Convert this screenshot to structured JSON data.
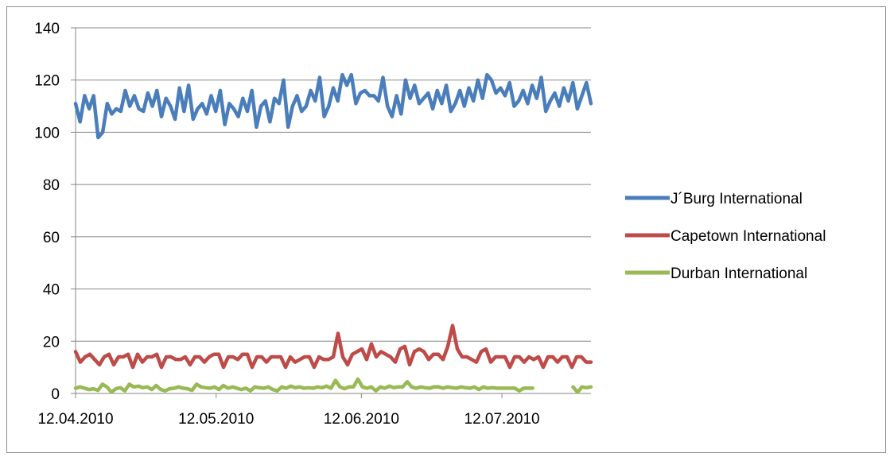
{
  "chart_data": {
    "type": "line",
    "x_start": "12.04.2010",
    "x_end": "31.07.2010",
    "x_tick_labels": [
      "12.04.2010",
      "12.05.2010",
      "12.06.2010",
      "12.07.2010"
    ],
    "x_tick_dates": [
      "2010-04-12",
      "2010-05-12",
      "2010-06-12",
      "2010-07-12"
    ],
    "ylim": [
      0,
      140
    ],
    "y_ticks": [
      0,
      20,
      40,
      60,
      80,
      100,
      120,
      140
    ],
    "grid": true,
    "legend_position": "right",
    "series": [
      {
        "name": "J´Burg International",
        "color": "#4a7ebb",
        "values": [
          111,
          104,
          114,
          109,
          114,
          98,
          100,
          111,
          107,
          109,
          108,
          116,
          110,
          114,
          109,
          108,
          115,
          110,
          116,
          106,
          113,
          110,
          105,
          117,
          108,
          118,
          105,
          109,
          111,
          107,
          114,
          108,
          116,
          103,
          111,
          109,
          106,
          113,
          108,
          116,
          102,
          110,
          112,
          104,
          113,
          111,
          120,
          102,
          110,
          114,
          108,
          110,
          116,
          112,
          121,
          106,
          110,
          117,
          112,
          122,
          118,
          122,
          111,
          115,
          116,
          114,
          114,
          112,
          121,
          110,
          106,
          114,
          107,
          120,
          113,
          118,
          111,
          113,
          115,
          109,
          116,
          111,
          118,
          108,
          111,
          116,
          110,
          117,
          112,
          120,
          113,
          122,
          120,
          115,
          117,
          114,
          119,
          110,
          112,
          116,
          111,
          118,
          113,
          121,
          108,
          112,
          115,
          110,
          117,
          112,
          119,
          109,
          114,
          119,
          111
        ],
        "values_note": ""
      },
      {
        "name": "Capetown International",
        "color": "#be4b48",
        "values": [
          16,
          12,
          14,
          15,
          13,
          11,
          14,
          15,
          11,
          14,
          14,
          15,
          10,
          15,
          12,
          14,
          14,
          15,
          10,
          14,
          14,
          13,
          13,
          14,
          11,
          14,
          14,
          12,
          14,
          15,
          15,
          10,
          14,
          14,
          13,
          15,
          15,
          10,
          14,
          14,
          12,
          14,
          14,
          14,
          10,
          14,
          12,
          13,
          14,
          14,
          10,
          14,
          13,
          13,
          14,
          23,
          14,
          11,
          15,
          16,
          17,
          13,
          19,
          14,
          16,
          15,
          14,
          12,
          17,
          18,
          11,
          16,
          17,
          16,
          13,
          15,
          15,
          13,
          18,
          26,
          17,
          14,
          14,
          13,
          12,
          16,
          17,
          12,
          14,
          14,
          14,
          10,
          14,
          14,
          12,
          14,
          13,
          14,
          10,
          14,
          14,
          12,
          14,
          14,
          10,
          14,
          14,
          12,
          12
        ],
        "values_note": ""
      },
      {
        "name": "Durban International",
        "color": "#98b954",
        "values": [
          2,
          2.5,
          2,
          1.5,
          1.8,
          1.2,
          3.5,
          2.5,
          0.5,
          1.8,
          2.2,
          1,
          3.5,
          2.5,
          2.8,
          2.2,
          2.5,
          1.5,
          3,
          1.5,
          1,
          1.8,
          2,
          2.5,
          2,
          1.8,
          1.2,
          3.5,
          2.5,
          2.2,
          2,
          2.5,
          1.5,
          3,
          2,
          2.5,
          2,
          1.5,
          2,
          1,
          2.5,
          2.2,
          2,
          2.5,
          1.5,
          1,
          2.5,
          2,
          2.8,
          2.2,
          2.5,
          2,
          2.2,
          2,
          2.5,
          2.2,
          2.8,
          2,
          5,
          2.5,
          1.8,
          2.5,
          2.5,
          5.5,
          2.5,
          2,
          2.5,
          1,
          2.5,
          2,
          2.8,
          2.2,
          2.5,
          2.5,
          4.5,
          2.5,
          2,
          2.5,
          2.2,
          2,
          2.5,
          2.5,
          2,
          2.5,
          2.2,
          2,
          2.5,
          2.2,
          2,
          2.5,
          1.5,
          2.5,
          2,
          2.2,
          2,
          2,
          2,
          2,
          2,
          1,
          2,
          2,
          2,
          null,
          null,
          null,
          null,
          null,
          null,
          null,
          null,
          2.5,
          0.5,
          2.5,
          2.2,
          2.5
        ],
        "values_note": ""
      }
    ]
  }
}
